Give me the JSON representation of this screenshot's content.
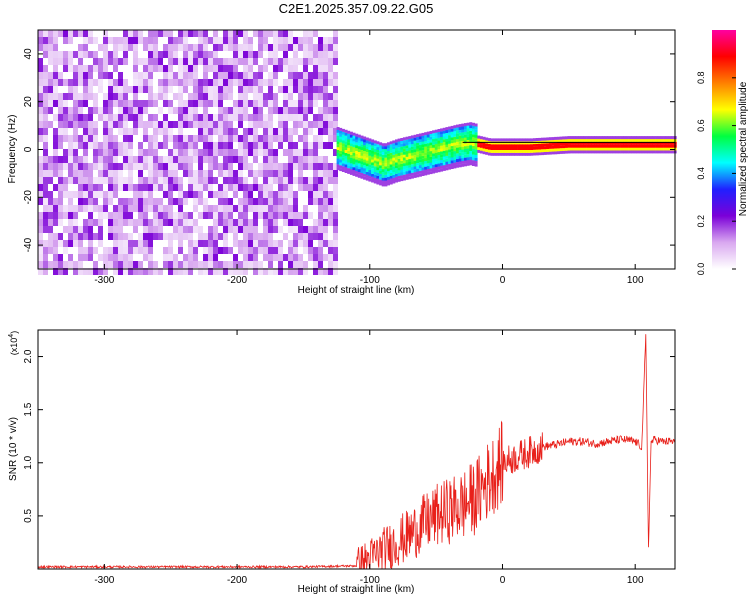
{
  "title": "C2E1.2025.357.09.22.G05",
  "chart_data": [
    {
      "type": "heatmap",
      "xlabel": "Height of straight line (km)",
      "ylabel": "Frequency (Hz)",
      "xlim": [
        -350,
        130
      ],
      "ylim": [
        -50,
        50
      ],
      "x_ticks": [
        -300,
        -200,
        -100,
        0,
        100
      ],
      "y_ticks": [
        -40,
        -20,
        0,
        20,
        40
      ],
      "noise_region_x": [
        -350,
        -125
      ],
      "signal_track": [
        {
          "x": -130,
          "y": 2
        },
        {
          "x": -115,
          "y": -1
        },
        {
          "x": -100,
          "y": -4
        },
        {
          "x": -90,
          "y": -6
        },
        {
          "x": -80,
          "y": -4
        },
        {
          "x": -65,
          "y": -2
        },
        {
          "x": -50,
          "y": 0
        },
        {
          "x": -35,
          "y": 2
        },
        {
          "x": -25,
          "y": 3
        },
        {
          "x": -10,
          "y": 1
        },
        {
          "x": 0,
          "y": 1
        },
        {
          "x": 20,
          "y": 1
        },
        {
          "x": 50,
          "y": 2
        },
        {
          "x": 100,
          "y": 2
        },
        {
          "x": 130,
          "y": 2
        }
      ],
      "colorbar": {
        "label": "Normalized spectral amplitude",
        "ticks": [
          "0.0",
          "0.2",
          "0.4",
          "0.6",
          "0.8"
        ],
        "range": [
          0,
          1
        ],
        "colormap": [
          "#ffffff",
          "#d9a8f0",
          "#7b00d8",
          "#2020ff",
          "#00ffff",
          "#00ff40",
          "#ffff00",
          "#ff8000",
          "#ff0000",
          "#ff00a0"
        ]
      }
    },
    {
      "type": "line",
      "xlabel": "Height of straight line (km)",
      "ylabel": "SNR (10 * v/v)",
      "y_multiplier": "(x10",
      "y_multiplier_exp": "4",
      "xlim": [
        -350,
        130
      ],
      "ylim": [
        0,
        2.25
      ],
      "x_ticks": [
        -300,
        -200,
        -100,
        0,
        100
      ],
      "y_ticks": [
        0.5,
        1.0,
        1.5,
        2.0
      ],
      "y_tick_labels": [
        "0.5",
        "1.0",
        "1.5",
        "2.0"
      ],
      "line_color": "#e8201a",
      "series": [
        {
          "x": [
            -350,
            -300,
            -250,
            -200,
            -150,
            -110,
            -100,
            -90,
            -80,
            -70,
            -60,
            -50,
            -40,
            -30,
            -20,
            -10,
            0,
            10,
            20,
            30,
            40,
            50,
            60,
            70,
            80,
            90,
            100,
            105,
            108,
            110,
            112,
            115,
            120,
            130
          ],
          "values": [
            0.02,
            0.02,
            0.02,
            0.02,
            0.02,
            0.03,
            0.1,
            0.18,
            0.25,
            0.32,
            0.42,
            0.5,
            0.55,
            0.6,
            0.68,
            0.85,
            1.0,
            1.05,
            1.1,
            1.15,
            1.17,
            1.2,
            1.2,
            1.18,
            1.2,
            1.22,
            1.2,
            1.15,
            2.2,
            0.2,
            1.2,
            1.22,
            1.2,
            1.2
          ]
        }
      ]
    }
  ]
}
